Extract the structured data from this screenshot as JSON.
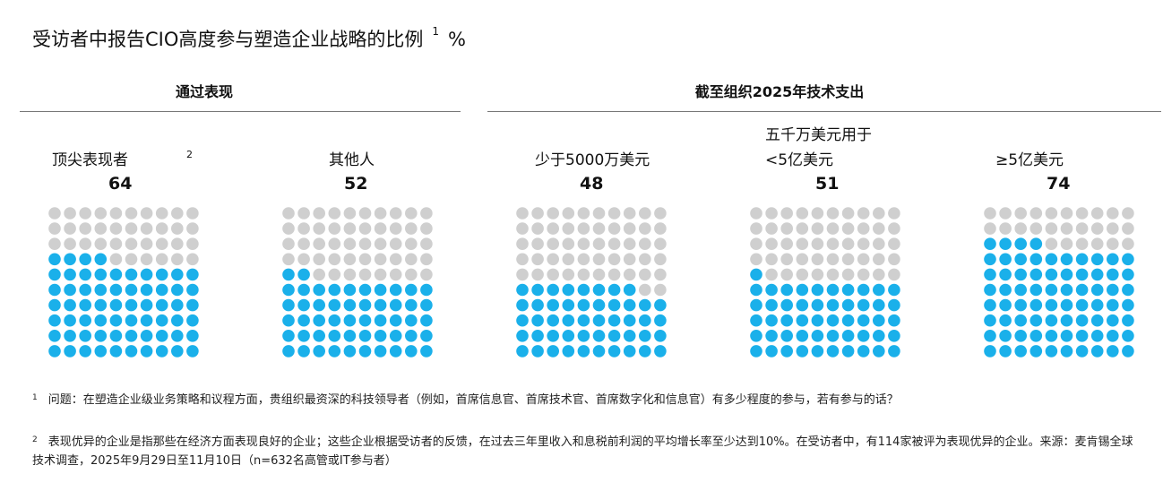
{
  "title": "受访者中报告CIO高度参与塑造企业战略的比例",
  "title_sup": "1",
  "title_unit": "%",
  "groups": [
    {
      "label": "通过表现"
    },
    {
      "label": "截至组织2025年技术支出"
    }
  ],
  "colors": {
    "filled": "#1ab0ea",
    "empty": "#cfcfcf",
    "rule": "#777777"
  },
  "chart_data": {
    "type": "waffle",
    "title": "受访者中报告CIO高度参与塑造企业战略的比例",
    "unit": "%",
    "grid": "10x10",
    "categories": [
      "顶尖表现者",
      "其他人",
      "少于5000万美元",
      "五千万美元用于<5亿美元",
      "≥5亿美元"
    ],
    "values": [
      64,
      52,
      48,
      51,
      74
    ]
  },
  "panels": [
    {
      "label_line1": "顶尖表现者",
      "label_line2": "",
      "value": "64",
      "sup": "2"
    },
    {
      "label_line1": "其他人",
      "label_line2": "",
      "value": "52",
      "sup": ""
    },
    {
      "label_line1": "少于5000万美元",
      "label_line2": "",
      "value": "48",
      "sup": ""
    },
    {
      "label_line1": "五千万美元用于",
      "label_line2": "<5亿美元",
      "value": "51",
      "sup": ""
    },
    {
      "label_line1": "≥5亿美元",
      "label_line2": "",
      "value": "74",
      "sup": ""
    }
  ],
  "footnotes": [
    {
      "num": "1",
      "text": "问题：在塑造企业级业务策略和议程方面，贵组织最资深的科技领导者（例如，首席信息官、首席技术官、首席数字化和信息官）有多少程度的参与，若有参与的话？"
    },
    {
      "num": "2",
      "text": "表现优异的企业是指那些在经济方面表现良好的企业；这些企业根据受访者的反馈，在过去三年里收入和息税前利润的平均增长率至少达到10%。在受访者中，有114家被评为表现优异的企业。来源：麦肯锡全球技术调查，2025年9月29日至11月10日（n=632名高管或IT参与者）"
    }
  ]
}
